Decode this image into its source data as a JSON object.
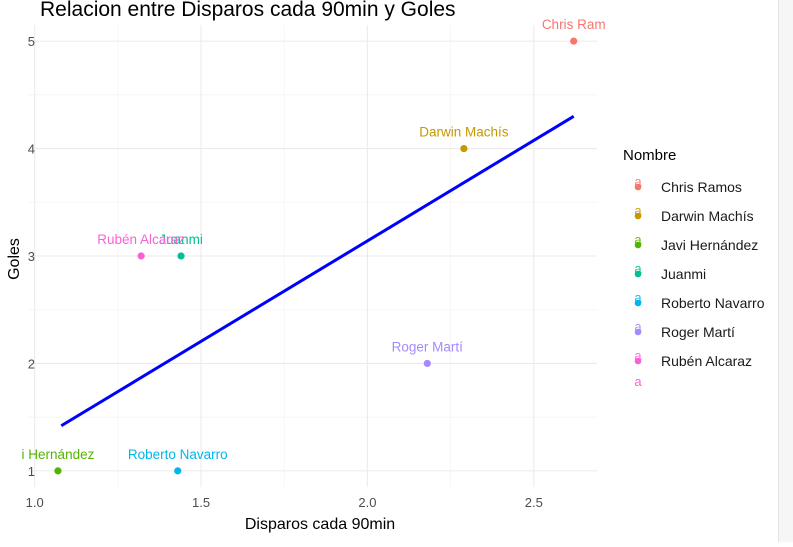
{
  "chart_data": {
    "type": "scatter",
    "title": "Relacion entre Disparos cada 90min y Goles",
    "xlabel": "Disparos cada 90min",
    "ylabel": "Goles",
    "xlim": [
      0.98,
      2.69
    ],
    "ylim": [
      0.85,
      5.15
    ],
    "x_ticks": [
      1.0,
      1.5,
      2.0,
      2.5
    ],
    "x_tick_labels": [
      "1.0",
      "1.5",
      "2.0",
      "2.5"
    ],
    "y_ticks": [
      1,
      2,
      3,
      4,
      5
    ],
    "y_tick_labels": [
      "1",
      "2",
      "3",
      "4",
      "5"
    ],
    "grid": true,
    "legend_title": "Nombre",
    "legend_position": "right",
    "legend_key_glyph": "a",
    "points": [
      {
        "name": "Chris Ramos",
        "x": 2.62,
        "y": 5,
        "color": "#F8766D",
        "label": "Chris Ram"
      },
      {
        "name": "Darwin Machís",
        "x": 2.29,
        "y": 4,
        "color": "#C49A00",
        "label": "Darwin Machís"
      },
      {
        "name": "Javi Hernández",
        "x": 1.07,
        "y": 1,
        "color": "#53B400",
        "label": "i Hernández"
      },
      {
        "name": "Juanmi",
        "x": 1.44,
        "y": 3,
        "color": "#00C094",
        "label": "Juanmi"
      },
      {
        "name": "Roberto Navarro",
        "x": 1.43,
        "y": 1,
        "color": "#00B6EB",
        "label": "Roberto Navarro"
      },
      {
        "name": "Roger Martí",
        "x": 2.18,
        "y": 2,
        "color": "#A58AFF",
        "label": "Roger Martí"
      },
      {
        "name": "Rubén Alcaraz",
        "x": 1.32,
        "y": 3,
        "color": "#FB61D7",
        "label": "Rubén Alcaraz"
      }
    ],
    "regression_line": {
      "color": "#0000FF",
      "x": [
        1.08,
        2.62
      ],
      "y": [
        1.42,
        4.3
      ]
    }
  }
}
